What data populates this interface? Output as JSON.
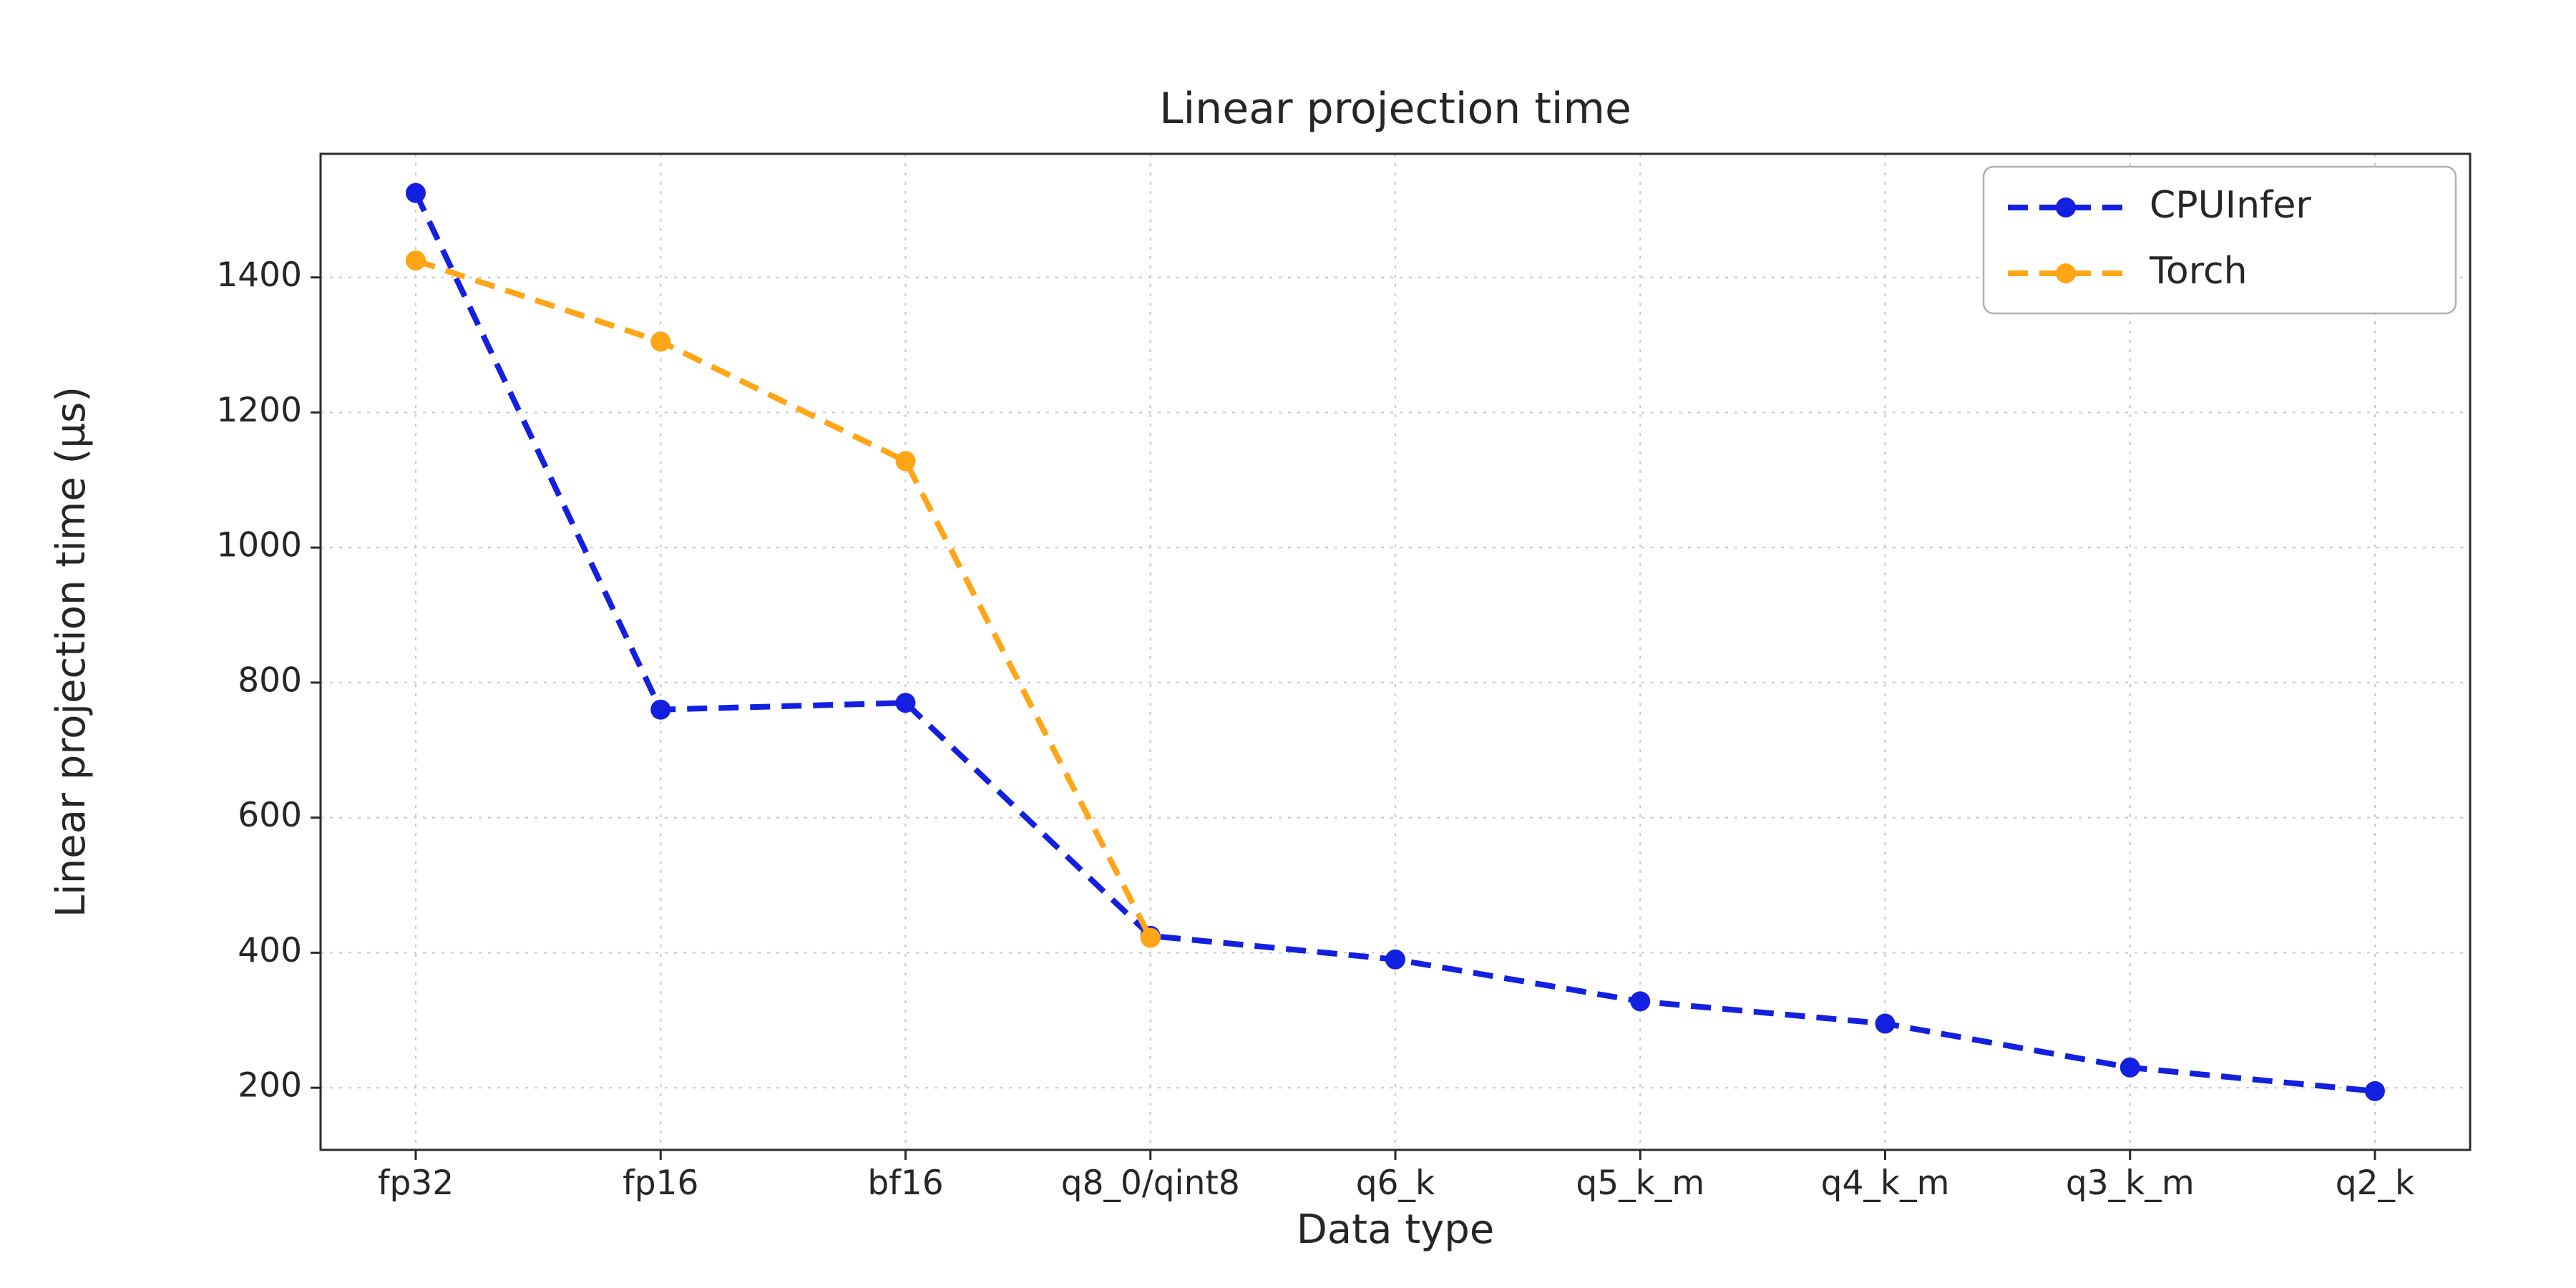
{
  "chart_data": {
    "type": "line",
    "title": "Linear projection time",
    "xlabel": "Data type",
    "ylabel": "Linear projection time (µs)",
    "categories": [
      "fp32",
      "fp16",
      "bf16",
      "q8_0/qint8",
      "q6_k",
      "q5_k_m",
      "q4_k_m",
      "q3_k_m",
      "q2_k"
    ],
    "series": [
      {
        "name": "CPUInfer",
        "color": "#1420e0",
        "values": [
          1525,
          760,
          770,
          425,
          390,
          328,
          295,
          230,
          195
        ]
      },
      {
        "name": "Torch",
        "color": "#ffa516",
        "values": [
          1425,
          1305,
          1128,
          422,
          null,
          null,
          null,
          null,
          null
        ]
      }
    ],
    "yticks": [
      200,
      400,
      600,
      800,
      1000,
      1200,
      1400
    ],
    "ylim": [
      108,
      1583
    ],
    "grid": true,
    "grid_color": "#c9c9c9",
    "axis_color": "#2b2b2b",
    "text_color": "#262626",
    "line_style": "dashed",
    "marker": "circle",
    "legend_position": "upper right",
    "legend_labels": [
      "CPUInfer",
      "Torch"
    ]
  }
}
